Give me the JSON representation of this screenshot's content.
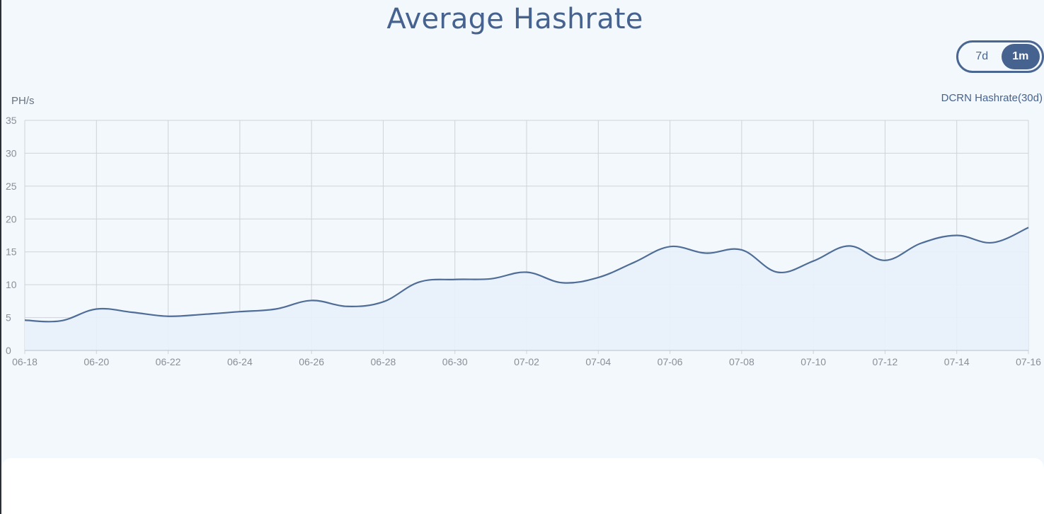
{
  "page": {
    "title": "Average Hashrate"
  },
  "range_toggle": {
    "options": [
      "7d",
      "1m"
    ],
    "selected": "1m"
  },
  "colors": {
    "line": "#4f6d97",
    "area": "#e8f1fb",
    "grid": "#cfd3d9",
    "axis_text": "#8a8f98",
    "title": "#46628f",
    "accent": "#46628f"
  },
  "chart_data": {
    "type": "area",
    "ylabel": "PH/s",
    "legend": "DCRN Hashrate(30d)",
    "legend_position": "top-right",
    "grid": true,
    "ylim": [
      0,
      35
    ],
    "y_ticks": [
      0,
      5,
      10,
      15,
      20,
      25,
      30,
      35
    ],
    "x_ticks": [
      "06-18",
      "06-20",
      "06-22",
      "06-24",
      "06-26",
      "06-28",
      "06-30",
      "07-02",
      "07-04",
      "07-06",
      "07-08",
      "07-10",
      "07-12",
      "07-14",
      "07-16"
    ],
    "series": [
      {
        "name": "DCRN Hashrate(30d)",
        "x": [
          "06-18",
          "06-19",
          "06-20",
          "06-21",
          "06-22",
          "06-23",
          "06-24",
          "06-25",
          "06-26",
          "06-27",
          "06-28",
          "06-29",
          "06-30",
          "07-01",
          "07-02",
          "07-03",
          "07-04",
          "07-05",
          "07-06",
          "07-07",
          "07-08",
          "07-09",
          "07-10",
          "07-11",
          "07-12",
          "07-13",
          "07-14",
          "07-15",
          "07-16"
        ],
        "values": [
          4.6,
          4.5,
          6.3,
          5.8,
          5.2,
          5.5,
          5.9,
          6.3,
          7.6,
          6.7,
          7.4,
          10.4,
          10.8,
          10.9,
          11.9,
          10.3,
          11.1,
          13.4,
          15.8,
          14.8,
          15.3,
          11.9,
          13.6,
          15.9,
          13.7,
          16.3,
          17.5,
          16.4,
          18.7
        ]
      }
    ]
  }
}
